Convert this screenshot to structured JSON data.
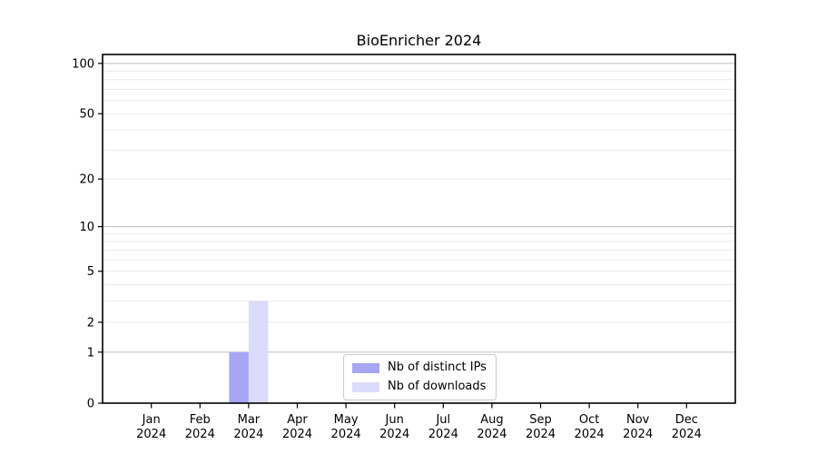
{
  "figure": {
    "background": "#ffffff"
  },
  "chart_data": {
    "type": "bar",
    "title": "BioEnricher 2024",
    "categories": [
      "Jan 2024",
      "Feb 2024",
      "Mar 2024",
      "Apr 2024",
      "May 2024",
      "Jun 2024",
      "Jul 2024",
      "Aug 2024",
      "Sep 2024",
      "Oct 2024",
      "Nov 2024",
      "Dec 2024"
    ],
    "series": [
      {
        "name": "Nb of distinct IPs",
        "color": "#a6a6f5",
        "values": [
          0,
          0,
          1,
          0,
          0,
          0,
          0,
          0,
          0,
          0,
          0,
          0
        ]
      },
      {
        "name": "Nb of downloads",
        "color": "#dbdbfb",
        "values": [
          0,
          0,
          3,
          0,
          0,
          0,
          0,
          0,
          0,
          0,
          0,
          0
        ]
      }
    ],
    "xlabel": "",
    "ylabel": "",
    "y_scale": "log1p",
    "ylim": [
      0,
      113
    ],
    "y_ticks": [
      0,
      1,
      2,
      5,
      10,
      20,
      50,
      100
    ],
    "y_major_gridlines": [
      1,
      10,
      100
    ],
    "y_minor_gridlines": [
      2,
      3,
      4,
      5,
      6,
      7,
      8,
      9,
      20,
      30,
      40,
      50,
      60,
      70,
      80,
      90
    ],
    "grid": true,
    "legend_position": "lower center",
    "colors": {
      "grid_major": "#c6c6c6",
      "grid_minor": "#eaeaea",
      "axis": "#000000",
      "text": "#000000"
    }
  }
}
